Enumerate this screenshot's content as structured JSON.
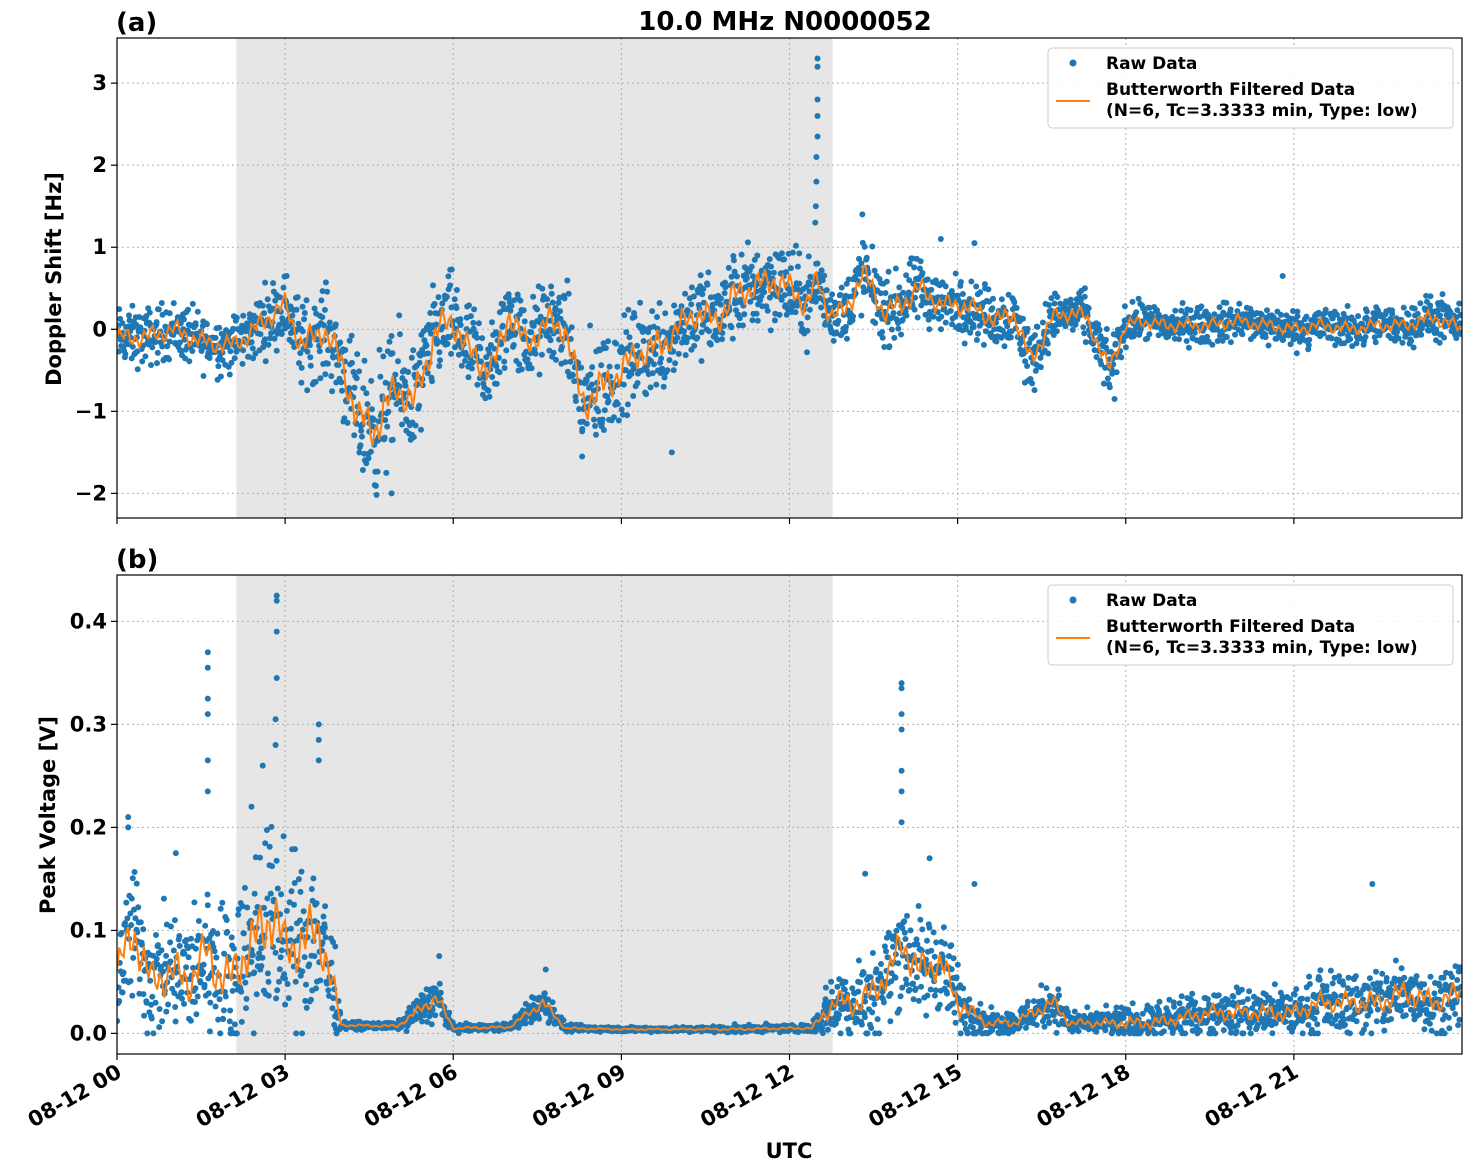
{
  "figure": {
    "title": "10.0 MHz N0000052",
    "xlabel": "UTC"
  },
  "colors": {
    "raw": "#1f77b4",
    "filtered": "#ff7f0e",
    "shade": "#e6e6e6",
    "grid": "#b0b0b0"
  },
  "chart_data": [
    {
      "type": "scatter",
      "panel_label": "(a)",
      "ylabel": "Doppler Shift [Hz]",
      "xlim": [
        0,
        24
      ],
      "ylim": [
        -2.3,
        3.55
      ],
      "x_unit": "hours UTC on 08-12",
      "xticks": [
        0,
        3,
        6,
        9,
        12,
        15,
        18,
        21
      ],
      "xtick_labels": [
        "08-12 00",
        "08-12 03",
        "08-12 06",
        "08-12 09",
        "08-12 12",
        "08-12 15",
        "08-12 18",
        "08-12 21"
      ],
      "yticks": [
        -2,
        -1,
        0,
        1,
        2,
        3
      ],
      "ytick_labels": [
        "−2",
        "−1",
        "0",
        "1",
        "2",
        "3"
      ],
      "grid": true,
      "legend_position": "top-right",
      "shaded_span": [
        2.13,
        12.77
      ],
      "series": [
        {
          "name": "Raw Data",
          "kind": "scatter",
          "x": [
            0,
            0.5,
            1,
            1.5,
            2,
            2.3,
            2.7,
            3,
            3.3,
            3.7,
            4,
            4.3,
            4.6,
            5,
            5.3,
            5.7,
            6,
            6.3,
            6.7,
            7,
            7.3,
            7.7,
            8,
            8.3,
            8.7,
            9,
            9.3,
            9.7,
            10,
            10.3,
            10.7,
            11,
            11.3,
            11.7,
            12,
            12.3,
            12.5,
            12.7,
            13,
            13.3,
            13.7,
            14,
            14.3,
            14.7,
            15,
            15.3,
            15.7,
            16,
            16.3,
            16.7,
            17,
            17.3,
            17.7,
            18,
            18.3,
            18.7,
            19,
            19.5,
            20,
            20.5,
            21,
            21.5,
            22,
            22.5,
            23,
            23.5,
            24
          ],
          "y": [
            -0.1,
            -0.1,
            0.0,
            -0.15,
            -0.2,
            -0.1,
            0.15,
            0.3,
            -0.2,
            0.0,
            -0.4,
            -1.1,
            -1.2,
            -0.7,
            -0.9,
            0.0,
            0.1,
            -0.3,
            -0.5,
            0.2,
            -0.2,
            0.1,
            0.0,
            -0.9,
            -0.7,
            -0.5,
            -0.3,
            -0.2,
            0.0,
            0.2,
            0.1,
            0.4,
            0.5,
            0.6,
            0.5,
            0.3,
            0.6,
            0.2,
            0.2,
            0.7,
            0.2,
            0.3,
            0.5,
            0.3,
            0.3,
            0.25,
            0.1,
            0.2,
            -0.4,
            0.15,
            0.2,
            0.15,
            -0.5,
            0.05,
            0.1,
            0.05,
            0.05,
            0.05,
            0.1,
            0.05,
            0.0,
            0.05,
            0.0,
            0.05,
            0.05,
            0.15,
            0.0
          ]
        },
        {
          "name": "Butterworth Filtered Data\n(N=6, Tc=3.3333 min, Type: low)",
          "kind": "line",
          "x": [
            0,
            0.5,
            1,
            1.5,
            2,
            2.3,
            2.7,
            3,
            3.3,
            3.7,
            4,
            4.3,
            4.6,
            5,
            5.3,
            5.7,
            6,
            6.3,
            6.7,
            7,
            7.3,
            7.7,
            8,
            8.3,
            8.7,
            9,
            9.3,
            9.7,
            10,
            10.3,
            10.7,
            11,
            11.3,
            11.7,
            12,
            12.3,
            12.5,
            12.7,
            13,
            13.3,
            13.7,
            14,
            14.3,
            14.7,
            15,
            15.3,
            15.7,
            16,
            16.3,
            16.7,
            17,
            17.3,
            17.7,
            18,
            18.3,
            18.7,
            19,
            19.5,
            20,
            20.5,
            21,
            21.5,
            22,
            22.5,
            23,
            23.5,
            24
          ],
          "y": [
            -0.1,
            -0.1,
            0.0,
            -0.15,
            -0.2,
            -0.1,
            0.15,
            0.3,
            -0.2,
            0.0,
            -0.4,
            -1.1,
            -1.2,
            -0.7,
            -0.9,
            0.0,
            0.1,
            -0.3,
            -0.5,
            0.2,
            -0.2,
            0.1,
            0.0,
            -0.9,
            -0.7,
            -0.5,
            -0.3,
            -0.2,
            0.0,
            0.2,
            0.1,
            0.4,
            0.5,
            0.6,
            0.5,
            0.3,
            0.6,
            0.2,
            0.2,
            0.7,
            0.2,
            0.3,
            0.5,
            0.3,
            0.3,
            0.25,
            0.1,
            0.2,
            -0.4,
            0.15,
            0.2,
            0.15,
            -0.5,
            0.05,
            0.1,
            0.05,
            0.05,
            0.05,
            0.1,
            0.05,
            0.0,
            0.05,
            0.0,
            0.05,
            0.05,
            0.15,
            0.0
          ]
        }
      ],
      "raw_spread": [
        0.3,
        0.3,
        0.3,
        0.3,
        0.3,
        0.3,
        0.35,
        0.35,
        0.45,
        0.45,
        0.5,
        0.6,
        0.7,
        0.6,
        0.6,
        0.5,
        0.5,
        0.5,
        0.5,
        0.45,
        0.45,
        0.45,
        0.45,
        0.6,
        0.6,
        0.5,
        0.5,
        0.5,
        0.45,
        0.45,
        0.45,
        0.45,
        0.45,
        0.45,
        0.45,
        0.4,
        0.4,
        0.3,
        0.35,
        0.4,
        0.35,
        0.35,
        0.35,
        0.3,
        0.3,
        0.3,
        0.3,
        0.3,
        0.35,
        0.25,
        0.25,
        0.25,
        0.3,
        0.2,
        0.2,
        0.2,
        0.2,
        0.2,
        0.2,
        0.2,
        0.2,
        0.2,
        0.2,
        0.2,
        0.2,
        0.25,
        0.2
      ],
      "raw_outliers": [
        {
          "x": 12.5,
          "y": 3.3
        },
        {
          "x": 12.5,
          "y": 3.2
        },
        {
          "x": 12.5,
          "y": 2.8
        },
        {
          "x": 12.5,
          "y": 2.6
        },
        {
          "x": 12.5,
          "y": 2.35
        },
        {
          "x": 12.48,
          "y": 2.1
        },
        {
          "x": 12.48,
          "y": 1.8
        },
        {
          "x": 12.47,
          "y": 1.5
        },
        {
          "x": 12.46,
          "y": 1.3
        },
        {
          "x": 4.9,
          "y": -2.0
        },
        {
          "x": 4.6,
          "y": -1.9
        },
        {
          "x": 8.3,
          "y": -1.55
        },
        {
          "x": 9.9,
          "y": -1.5
        },
        {
          "x": 13.3,
          "y": 1.4
        },
        {
          "x": 14.7,
          "y": 1.1
        },
        {
          "x": 15.3,
          "y": 1.05
        },
        {
          "x": 20.8,
          "y": 0.65
        },
        {
          "x": 17.8,
          "y": -0.85
        },
        {
          "x": 16.2,
          "y": -0.65
        }
      ]
    },
    {
      "type": "scatter",
      "panel_label": "(b)",
      "ylabel": "Peak Voltage [V]",
      "xlim": [
        0,
        24
      ],
      "ylim": [
        -0.02,
        0.445
      ],
      "x_unit": "hours UTC on 08-12",
      "xticks": [
        0,
        3,
        6,
        9,
        12,
        15,
        18,
        21
      ],
      "xtick_labels": [
        "08-12 00",
        "08-12 03",
        "08-12 06",
        "08-12 09",
        "08-12 12",
        "08-12 15",
        "08-12 18",
        "08-12 21"
      ],
      "yticks": [
        0.0,
        0.1,
        0.2,
        0.3,
        0.4
      ],
      "ytick_labels": [
        "0.0",
        "0.1",
        "0.2",
        "0.3",
        "0.4"
      ],
      "grid": true,
      "legend_position": "top-right",
      "shaded_span": [
        2.13,
        12.77
      ],
      "series": [
        {
          "name": "Raw Data",
          "kind": "scatter",
          "x": [
            0,
            0.3,
            0.6,
            1,
            1.3,
            1.6,
            1.8,
            2,
            2.3,
            2.6,
            2.8,
            3.0,
            3.3,
            3.6,
            3.8,
            4,
            5,
            5.7,
            6,
            7,
            7.6,
            8,
            9,
            10,
            11,
            12,
            12.4,
            12.8,
            13.3,
            13.8,
            14,
            14.3,
            14.7,
            15,
            15.5,
            16,
            16.7,
            17,
            17.5,
            18,
            18.5,
            19,
            19.5,
            20,
            20.5,
            21,
            21.5,
            22,
            22.5,
            23,
            23.5,
            24
          ],
          "y": [
            0.06,
            0.1,
            0.05,
            0.06,
            0.05,
            0.08,
            0.06,
            0.05,
            0.08,
            0.1,
            0.12,
            0.08,
            0.09,
            0.1,
            0.06,
            0.008,
            0.007,
            0.035,
            0.005,
            0.006,
            0.03,
            0.005,
            0.004,
            0.004,
            0.004,
            0.005,
            0.005,
            0.03,
            0.03,
            0.06,
            0.09,
            0.06,
            0.07,
            0.03,
            0.01,
            0.01,
            0.03,
            0.01,
            0.01,
            0.01,
            0.01,
            0.015,
            0.02,
            0.02,
            0.02,
            0.02,
            0.03,
            0.03,
            0.03,
            0.04,
            0.03,
            0.04
          ]
        },
        {
          "name": "Butterworth Filtered Data\n(N=6, Tc=3.3333 min, Type: low)",
          "kind": "line",
          "x": [
            0,
            0.3,
            0.6,
            1,
            1.3,
            1.6,
            1.8,
            2,
            2.3,
            2.6,
            2.8,
            3.0,
            3.3,
            3.6,
            3.8,
            4,
            5,
            5.7,
            6,
            7,
            7.6,
            8,
            9,
            10,
            11,
            12,
            12.4,
            12.8,
            13.3,
            13.8,
            14,
            14.3,
            14.7,
            15,
            15.5,
            16,
            16.7,
            17,
            17.5,
            18,
            18.5,
            19,
            19.5,
            20,
            20.5,
            21,
            21.5,
            22,
            22.5,
            23,
            23.5,
            24
          ],
          "y": [
            0.06,
            0.1,
            0.05,
            0.06,
            0.05,
            0.08,
            0.06,
            0.05,
            0.08,
            0.1,
            0.12,
            0.08,
            0.09,
            0.1,
            0.06,
            0.008,
            0.007,
            0.035,
            0.005,
            0.006,
            0.03,
            0.005,
            0.004,
            0.004,
            0.004,
            0.005,
            0.005,
            0.03,
            0.03,
            0.06,
            0.09,
            0.06,
            0.07,
            0.03,
            0.01,
            0.01,
            0.03,
            0.01,
            0.01,
            0.01,
            0.01,
            0.015,
            0.02,
            0.02,
            0.02,
            0.02,
            0.03,
            0.03,
            0.03,
            0.04,
            0.03,
            0.04
          ]
        }
      ],
      "raw_spread": [
        0.05,
        0.06,
        0.05,
        0.05,
        0.05,
        0.06,
        0.06,
        0.06,
        0.07,
        0.08,
        0.08,
        0.07,
        0.07,
        0.07,
        0.06,
        0.003,
        0.003,
        0.02,
        0.003,
        0.003,
        0.015,
        0.003,
        0.002,
        0.002,
        0.003,
        0.003,
        0.003,
        0.03,
        0.035,
        0.04,
        0.05,
        0.045,
        0.04,
        0.03,
        0.01,
        0.01,
        0.02,
        0.01,
        0.01,
        0.015,
        0.015,
        0.015,
        0.02,
        0.02,
        0.02,
        0.02,
        0.025,
        0.025,
        0.03,
        0.03,
        0.025,
        0.03
      ],
      "raw_outliers": [
        {
          "x": 2.85,
          "y": 0.425
        },
        {
          "x": 2.85,
          "y": 0.42
        },
        {
          "x": 2.85,
          "y": 0.39
        },
        {
          "x": 2.85,
          "y": 0.345
        },
        {
          "x": 2.83,
          "y": 0.305
        },
        {
          "x": 2.83,
          "y": 0.28
        },
        {
          "x": 1.62,
          "y": 0.37
        },
        {
          "x": 1.62,
          "y": 0.355
        },
        {
          "x": 1.62,
          "y": 0.325
        },
        {
          "x": 1.62,
          "y": 0.31
        },
        {
          "x": 1.62,
          "y": 0.265
        },
        {
          "x": 1.62,
          "y": 0.235
        },
        {
          "x": 3.6,
          "y": 0.3
        },
        {
          "x": 3.6,
          "y": 0.285
        },
        {
          "x": 3.6,
          "y": 0.265
        },
        {
          "x": 2.6,
          "y": 0.26
        },
        {
          "x": 2.4,
          "y": 0.22
        },
        {
          "x": 14.0,
          "y": 0.34
        },
        {
          "x": 14.0,
          "y": 0.335
        },
        {
          "x": 14.0,
          "y": 0.31
        },
        {
          "x": 14.0,
          "y": 0.295
        },
        {
          "x": 14.0,
          "y": 0.255
        },
        {
          "x": 14.0,
          "y": 0.235
        },
        {
          "x": 14.0,
          "y": 0.205
        },
        {
          "x": 0.2,
          "y": 0.21
        },
        {
          "x": 0.2,
          "y": 0.2
        },
        {
          "x": 1.05,
          "y": 0.175
        },
        {
          "x": 13.35,
          "y": 0.155
        },
        {
          "x": 14.5,
          "y": 0.17
        },
        {
          "x": 15.3,
          "y": 0.145
        },
        {
          "x": 22.4,
          "y": 0.145
        },
        {
          "x": 5.75,
          "y": 0.075
        },
        {
          "x": 7.65,
          "y": 0.062
        }
      ]
    }
  ]
}
